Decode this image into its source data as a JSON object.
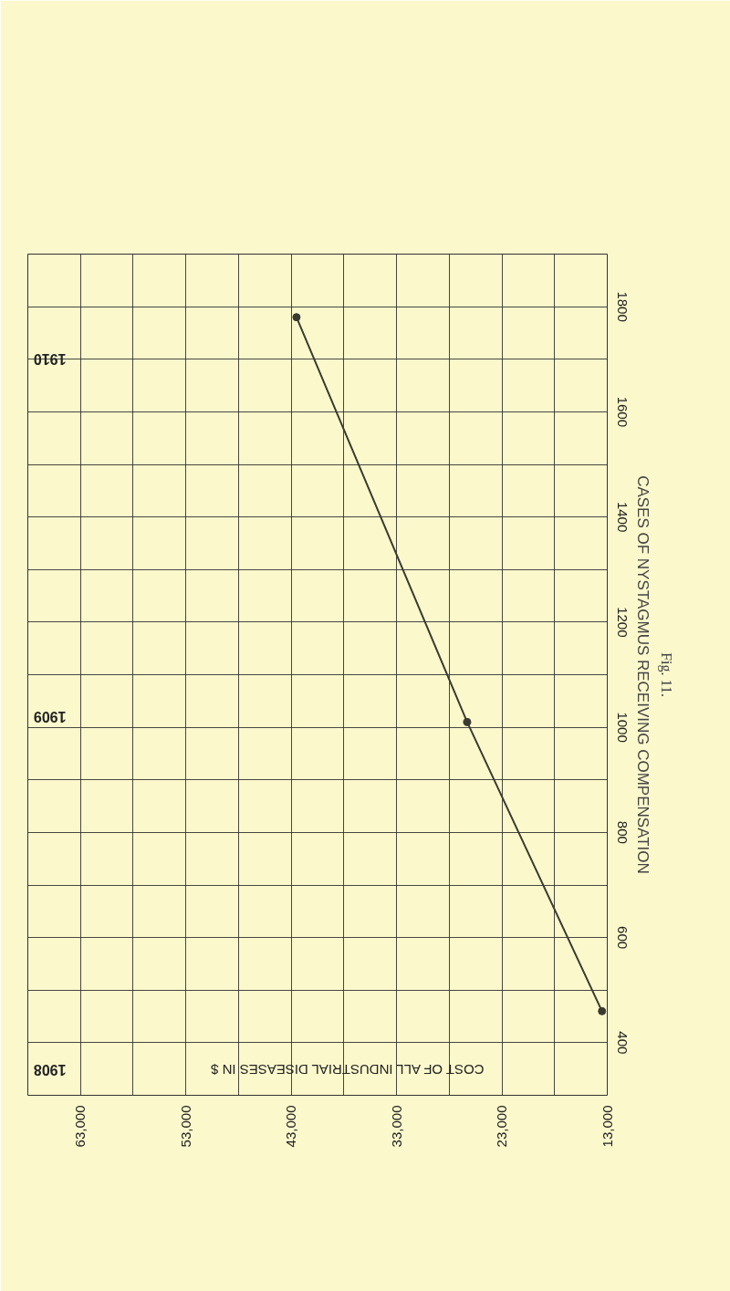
{
  "chart_data": {
    "type": "line",
    "xlabel": "COST OF ALL INDUSTRIAL DISEASES IN $",
    "ylabel": "CASES OF NYSTAGMUS RECEIVING COMPENSATION",
    "x": [
      13500,
      26300,
      42500
    ],
    "series": [
      {
        "color": "#3a3a30",
        "values": [
          460,
          1010,
          1780
        ]
      }
    ],
    "xlim": [
      68000,
      13000
    ],
    "xticks": [
      {
        "value": 68000,
        "label": null
      },
      {
        "value": 63000,
        "label": "63,000"
      },
      {
        "value": 58000,
        "label": null
      },
      {
        "value": 53000,
        "label": "53,000"
      },
      {
        "value": 48000,
        "label": null
      },
      {
        "value": 43000,
        "label": "43,000"
      },
      {
        "value": 38000,
        "label": null
      },
      {
        "value": 33000,
        "label": "33,000"
      },
      {
        "value": 28000,
        "label": null
      },
      {
        "value": 23000,
        "label": "23,000"
      },
      {
        "value": 18000,
        "label": null
      },
      {
        "value": 13000,
        "label": "13,000"
      }
    ],
    "ylim": [
      300,
      1900
    ],
    "yticks": [
      {
        "value": 300,
        "label": null
      },
      400,
      {
        "value": 500,
        "label": null
      },
      600,
      {
        "value": 700,
        "label": null
      },
      800,
      {
        "value": 900,
        "label": null
      },
      1000,
      {
        "value": 1100,
        "label": null
      },
      1200,
      {
        "value": 1300,
        "label": null
      },
      1400,
      {
        "value": 1500,
        "label": null
      },
      1600,
      {
        "value": 1700,
        "label": null
      },
      1800,
      {
        "value": 1900,
        "label": null
      }
    ],
    "grid": true,
    "marker": "circle",
    "line_style": "solid",
    "annotations": [
      "1910",
      "1909",
      "1908",
      "Fig. 11."
    ]
  }
}
